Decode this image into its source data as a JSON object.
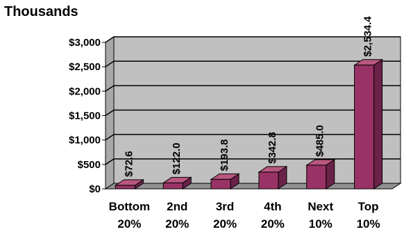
{
  "chart_data": {
    "type": "bar",
    "title": "Thousands",
    "categories": [
      [
        "Bottom",
        "20%"
      ],
      [
        "2nd",
        "20%"
      ],
      [
        "3rd",
        "20%"
      ],
      [
        "4th",
        "20%"
      ],
      [
        "Next",
        "10%"
      ],
      [
        "Top",
        "10%"
      ]
    ],
    "values": [
      72.6,
      122.0,
      193.8,
      342.8,
      485.0,
      2534.4
    ],
    "value_labels": [
      "$72.6",
      "$122.0",
      "$193.8",
      "$342.8",
      "$485.0",
      "$2,534.4"
    ],
    "y_ticks": [
      0,
      500,
      1000,
      1500,
      2000,
      2500,
      3000
    ],
    "y_tick_labels": [
      "$0",
      "$500",
      "$1,000",
      "$1,500",
      "$2,000",
      "$2,500",
      "$3,000"
    ],
    "ylim": [
      0,
      3000
    ],
    "grid": true,
    "legend": "none",
    "style": "3d-column",
    "colors": {
      "bar_front": "#993366",
      "bar_top": "#b8577f",
      "bar_side": "#6b2248",
      "plot_wall": "#c0c0c0",
      "plot_floor": "#909090",
      "gridline": "#000000"
    }
  }
}
